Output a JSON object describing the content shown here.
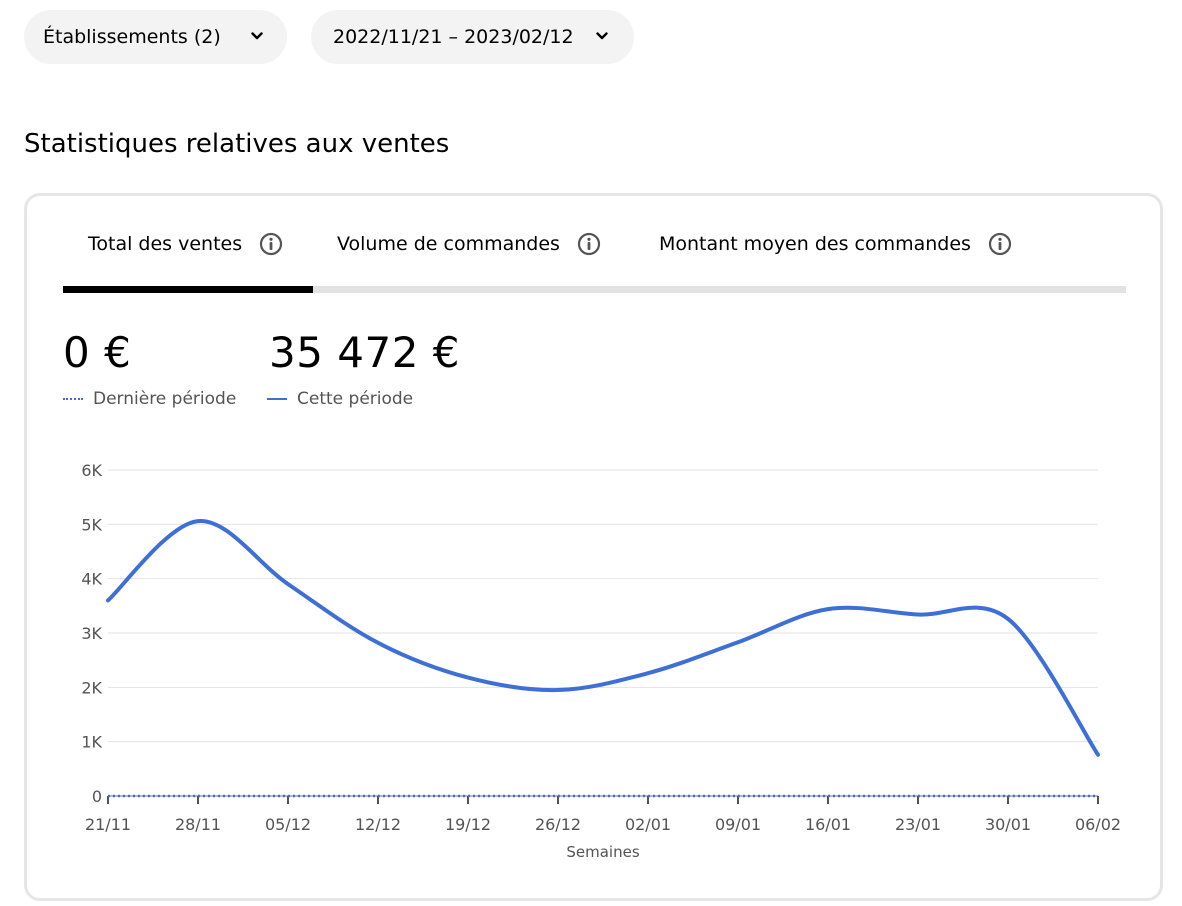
{
  "filters": {
    "locations_label": "Établissements (2)",
    "date_range_label": "2022/11/21 – 2023/02/12"
  },
  "section_title": "Statistiques relatives aux ventes",
  "tabs": [
    {
      "label": "Total des ventes",
      "active": true
    },
    {
      "label": "Volume de commandes",
      "active": false
    },
    {
      "label": "Montant moyen des commandes",
      "active": false
    }
  ],
  "metrics": {
    "last_period_value": "0 €",
    "current_period_value": "35 472 €"
  },
  "legend": {
    "last_period": "Dernière période",
    "current_period": "Cette période"
  },
  "colors": {
    "series": "#3d6fd6",
    "active_tab": "#000000",
    "tab_track": "#e2e2e2",
    "grid": "#e2e2e2",
    "axis": "#545454"
  },
  "icons": {
    "filter_chevron": "chevron-down-icon",
    "tab_info": "info-icon"
  },
  "chart_data": {
    "type": "line",
    "x": [
      "21/11",
      "28/11",
      "05/12",
      "12/12",
      "19/12",
      "26/12",
      "02/01",
      "09/01",
      "16/01",
      "23/01",
      "30/01",
      "06/02"
    ],
    "series": [
      {
        "name": "Dernière période",
        "style": "dotted",
        "values": [
          0,
          0,
          0,
          0,
          0,
          0,
          0,
          0,
          0,
          0,
          0,
          0
        ]
      },
      {
        "name": "Cette période",
        "style": "solid",
        "values": [
          3600,
          5060,
          3900,
          2820,
          2180,
          1950,
          2260,
          2830,
          3440,
          3340,
          3260,
          760
        ]
      }
    ],
    "yticks": [
      "0",
      "1K",
      "2K",
      "3K",
      "4K",
      "5K",
      "6K"
    ],
    "ylim": [
      0,
      6000
    ],
    "xlabel": "Semaines",
    "ylabel": "",
    "grid": true,
    "legend": "top-left"
  }
}
